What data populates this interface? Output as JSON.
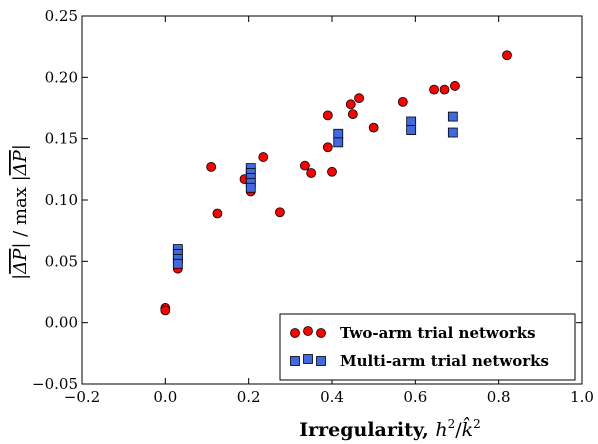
{
  "chart_data": {
    "type": "scatter",
    "xlabel": "Irregularity, h²/k̂²",
    "ylabel": "|ΔP| / max |ΔP|",
    "xlim": [
      -0.2,
      1.0
    ],
    "ylim": [
      -0.05,
      0.25
    ],
    "xticks": [
      "−0.2",
      "0.0",
      "0.2",
      "0.4",
      "0.6",
      "0.8",
      "1.0"
    ],
    "yticks": [
      "−0.05",
      "0.00",
      "0.05",
      "0.10",
      "0.15",
      "0.20",
      "0.25"
    ],
    "xtick_values": [
      -0.2,
      0.0,
      0.2,
      0.4,
      0.6,
      0.8,
      1.0
    ],
    "ytick_values": [
      -0.05,
      0.0,
      0.05,
      0.1,
      0.15,
      0.2,
      0.25
    ],
    "legend_position": "bottom-right",
    "series": [
      {
        "name": "Two-arm trial networks",
        "marker": "circle",
        "color": "#ff0000",
        "points": [
          [
            0.0,
            0.012
          ],
          [
            0.0,
            0.01
          ],
          [
            0.03,
            0.044
          ],
          [
            0.11,
            0.127
          ],
          [
            0.125,
            0.089
          ],
          [
            0.19,
            0.117
          ],
          [
            0.205,
            0.107
          ],
          [
            0.235,
            0.135
          ],
          [
            0.275,
            0.09
          ],
          [
            0.335,
            0.128
          ],
          [
            0.35,
            0.122
          ],
          [
            0.39,
            0.143
          ],
          [
            0.39,
            0.169
          ],
          [
            0.4,
            0.123
          ],
          [
            0.445,
            0.178
          ],
          [
            0.45,
            0.17
          ],
          [
            0.465,
            0.183
          ],
          [
            0.5,
            0.159
          ],
          [
            0.57,
            0.18
          ],
          [
            0.645,
            0.19
          ],
          [
            0.67,
            0.19
          ],
          [
            0.695,
            0.193
          ],
          [
            0.82,
            0.218
          ]
        ]
      },
      {
        "name": "Multi-arm trial networks",
        "marker": "square",
        "color": "#4169e1",
        "points": [
          [
            0.03,
            0.06
          ],
          [
            0.03,
            0.056
          ],
          [
            0.03,
            0.052
          ],
          [
            0.03,
            0.048
          ],
          [
            0.205,
            0.126
          ],
          [
            0.205,
            0.122
          ],
          [
            0.205,
            0.118
          ],
          [
            0.205,
            0.114
          ],
          [
            0.205,
            0.11
          ],
          [
            0.415,
            0.154
          ],
          [
            0.415,
            0.147
          ],
          [
            0.59,
            0.164
          ],
          [
            0.59,
            0.157
          ],
          [
            0.69,
            0.168
          ],
          [
            0.69,
            0.155
          ]
        ]
      }
    ]
  }
}
